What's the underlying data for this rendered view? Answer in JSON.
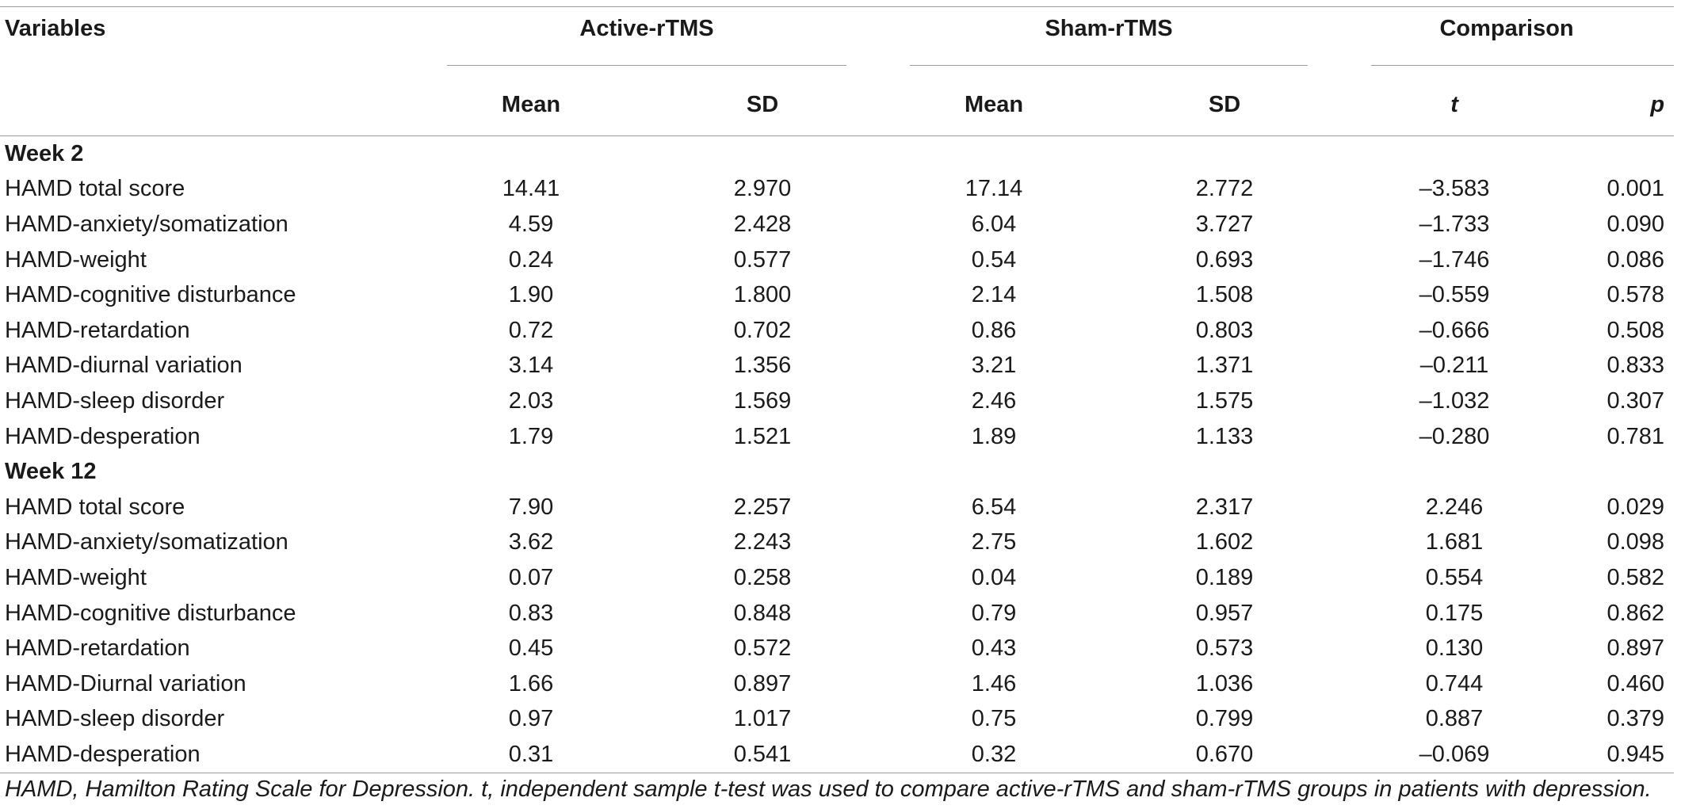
{
  "headers": {
    "variables": "Variables",
    "active": "Active-rTMS",
    "sham": "Sham-rTMS",
    "comparison": "Comparison",
    "mean": "Mean",
    "sd": "SD",
    "t": "t",
    "p": "p"
  },
  "sections": [
    {
      "label": "Week 2",
      "rows": [
        {
          "variable": "HAMD total score",
          "active_mean": "14.41",
          "active_sd": "2.970",
          "sham_mean": "17.14",
          "sham_sd": "2.772",
          "t": "–3.583",
          "p": "0.001"
        },
        {
          "variable": "HAMD-anxiety/somatization",
          "active_mean": "4.59",
          "active_sd": "2.428",
          "sham_mean": "6.04",
          "sham_sd": "3.727",
          "t": "–1.733",
          "p": "0.090"
        },
        {
          "variable": "HAMD-weight",
          "active_mean": "0.24",
          "active_sd": "0.577",
          "sham_mean": "0.54",
          "sham_sd": "0.693",
          "t": "–1.746",
          "p": "0.086"
        },
        {
          "variable": "HAMD-cognitive disturbance",
          "active_mean": "1.90",
          "active_sd": "1.800",
          "sham_mean": "2.14",
          "sham_sd": "1.508",
          "t": "–0.559",
          "p": "0.578"
        },
        {
          "variable": "HAMD-retardation",
          "active_mean": "0.72",
          "active_sd": "0.702",
          "sham_mean": "0.86",
          "sham_sd": "0.803",
          "t": "–0.666",
          "p": "0.508"
        },
        {
          "variable": "HAMD-diurnal variation",
          "active_mean": "3.14",
          "active_sd": "1.356",
          "sham_mean": "3.21",
          "sham_sd": "1.371",
          "t": "–0.211",
          "p": "0.833"
        },
        {
          "variable": "HAMD-sleep disorder",
          "active_mean": "2.03",
          "active_sd": "1.569",
          "sham_mean": "2.46",
          "sham_sd": "1.575",
          "t": "–1.032",
          "p": "0.307"
        },
        {
          "variable": "HAMD-desperation",
          "active_mean": "1.79",
          "active_sd": "1.521",
          "sham_mean": "1.89",
          "sham_sd": "1.133",
          "t": "–0.280",
          "p": "0.781"
        }
      ]
    },
    {
      "label": "Week 12",
      "rows": [
        {
          "variable": "HAMD total score",
          "active_mean": "7.90",
          "active_sd": "2.257",
          "sham_mean": "6.54",
          "sham_sd": "2.317",
          "t": "2.246",
          "p": "0.029"
        },
        {
          "variable": "HAMD-anxiety/somatization",
          "active_mean": "3.62",
          "active_sd": "2.243",
          "sham_mean": "2.75",
          "sham_sd": "1.602",
          "t": "1.681",
          "p": "0.098"
        },
        {
          "variable": "HAMD-weight",
          "active_mean": "0.07",
          "active_sd": "0.258",
          "sham_mean": "0.04",
          "sham_sd": "0.189",
          "t": "0.554",
          "p": "0.582"
        },
        {
          "variable": "HAMD-cognitive disturbance",
          "active_mean": "0.83",
          "active_sd": "0.848",
          "sham_mean": "0.79",
          "sham_sd": "0.957",
          "t": "0.175",
          "p": "0.862"
        },
        {
          "variable": "HAMD-retardation",
          "active_mean": "0.45",
          "active_sd": "0.572",
          "sham_mean": "0.43",
          "sham_sd": "0.573",
          "t": "0.130",
          "p": "0.897"
        },
        {
          "variable": "HAMD-Diurnal variation",
          "active_mean": "1.66",
          "active_sd": "0.897",
          "sham_mean": "1.46",
          "sham_sd": "1.036",
          "t": "0.744",
          "p": "0.460"
        },
        {
          "variable": "HAMD-sleep disorder",
          "active_mean": "0.97",
          "active_sd": "1.017",
          "sham_mean": "0.75",
          "sham_sd": "0.799",
          "t": "0.887",
          "p": "0.379"
        },
        {
          "variable": "HAMD-desperation",
          "active_mean": "0.31",
          "active_sd": "0.541",
          "sham_mean": "0.32",
          "sham_sd": "0.670",
          "t": "–0.069",
          "p": "0.945"
        }
      ]
    }
  ],
  "footnote": "HAMD, Hamilton Rating Scale for Depression. t, independent sample t-test was used to compare active-rTMS and sham-rTMS groups in patients with depression."
}
